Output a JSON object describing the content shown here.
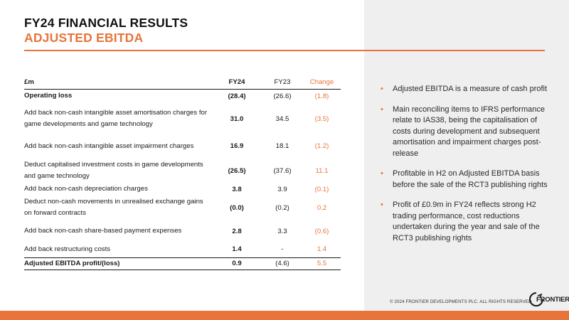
{
  "slide": {
    "title_line1": "FY24 FINANCIAL RESULTS",
    "title_line2": "ADJUSTED EBITDA"
  },
  "table": {
    "headers": {
      "label": "£m",
      "fy24": "FY24",
      "fy23": "FY23",
      "change": "Change"
    },
    "rows": [
      {
        "label": "Operating loss",
        "fy24": "(28.4)",
        "fy23": "(26.6)",
        "change": "(1.8)"
      },
      {
        "label": "Add back non-cash intangible asset amortisation charges for game developments and game technology",
        "fy24": "31.0",
        "fy23": "34.5",
        "change": "(3.5)"
      },
      {
        "label": "Add back non-cash intangible asset impairment charges",
        "fy24": "16.9",
        "fy23": "18.1",
        "change": "(1.2)"
      },
      {
        "label": "Deduct capitalised investment costs in game developments and game technology",
        "fy24": "(26.5)",
        "fy23": "(37.6)",
        "change": "11.1"
      },
      {
        "label": "Add back non-cash depreciation charges",
        "fy24": "3.8",
        "fy23": "3.9",
        "change": "(0.1)"
      },
      {
        "label": "Deduct non-cash movements in unrealised exchange gains on forward contracts",
        "fy24": "(0.0)",
        "fy23": "(0.2)",
        "change": "0.2"
      },
      {
        "label": "Add back non-cash share-based payment expenses",
        "fy24": "2.8",
        "fy23": "3.3",
        "change": "(0.6)"
      },
      {
        "label": "Add back restructuring costs",
        "fy24": "1.4",
        "fy23": "-",
        "change": "1.4"
      },
      {
        "label": "Adjusted EBITDA profit/(loss)",
        "fy24": "0.9",
        "fy23": "(4.6)",
        "change": "5.5"
      }
    ]
  },
  "bullets": [
    "Adjusted EBITDA is a measure of cash profit",
    "Main reconciling items to IFRS performance relate to IAS38, being the capitalisation of costs during development and subsequent amortisation and impairment charges post-release",
    "Profitable in H2 on Adjusted EBITDA basis before the sale of the RCT3 publishing rights",
    "Profit of £0.9m in FY24 reflects strong H2 trading performance, cost reductions undertaken during the year and sale of the RCT3 publishing rights"
  ],
  "footer": {
    "copyright": "© 2024 FRONTIER DEVELOPMENTS PLC. ALL RIGHTS RESERVED",
    "logo_text": "FRONTIER",
    "logo_icon": "frontier-logo-icon"
  },
  "colors": {
    "accent": "#e8743b",
    "panel": "#efefef",
    "text": "#1a1a1a"
  }
}
